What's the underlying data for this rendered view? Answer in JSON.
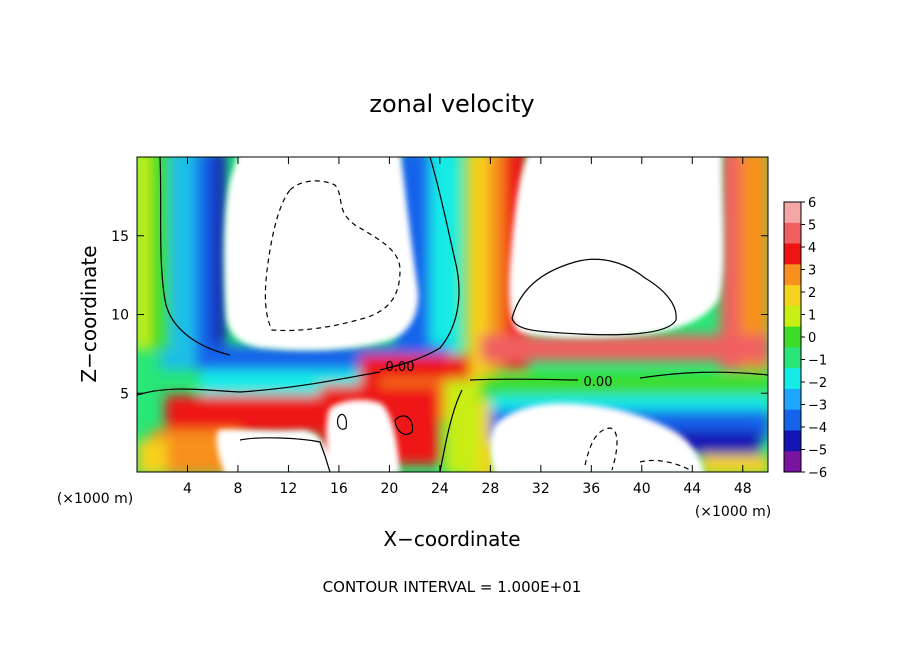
{
  "chart_data": {
    "type": "heatmap",
    "title": "zonal velocity",
    "xlabel": "X−coordinate",
    "ylabel": "Z−coordinate",
    "x_units_left": "(×1000 m)",
    "x_units_right": "(×1000 m)",
    "xlim": [
      0,
      50
    ],
    "ylim": [
      0,
      20
    ],
    "x_ticks": [
      4,
      8,
      12,
      16,
      20,
      24,
      28,
      32,
      36,
      40,
      44,
      48
    ],
    "x_tick_labels": [
      "4",
      "8",
      "12",
      "16",
      "20",
      "24",
      "28",
      "32",
      "36",
      "40",
      "44",
      "48"
    ],
    "y_ticks": [
      5,
      10,
      15
    ],
    "y_tick_labels": [
      "5",
      "10",
      "15"
    ],
    "colorbar": {
      "min": -6,
      "max": 6,
      "levels": [
        6,
        5,
        4,
        3,
        2,
        1,
        0,
        -1,
        -2,
        -3,
        -4,
        -5,
        -6
      ],
      "labels": [
        "6",
        "5",
        "4",
        "3",
        "2",
        "1",
        "0",
        "−1",
        "−2",
        "−3",
        "−4",
        "−5",
        "−6"
      ],
      "colors": [
        "#f4a6a6",
        "#f06060",
        "#ee1414",
        "#f7901e",
        "#f5d21c",
        "#c8ee14",
        "#3cdc28",
        "#28e678",
        "#14ebe6",
        "#1ea5ff",
        "#1464eb",
        "#1414b4",
        "#7814a0"
      ],
      "above_range_color": "#ffffff"
    },
    "contour_labels": [
      "0.00",
      "0.00"
    ],
    "contour_interval_note": "CONTOUR INTERVAL = 1.000E+01",
    "regions": [
      {
        "kind": "white_region",
        "label": "upper-left eddy (|u| > 6)",
        "x_range": [
          6.3,
          23.5
        ],
        "z_range": [
          7,
          20
        ]
      },
      {
        "kind": "white_region",
        "label": "upper-right region (|u| > 6)",
        "x_range": [
          28.3,
          46.3
        ],
        "z_range": [
          7.5,
          20
        ]
      },
      {
        "kind": "white_region",
        "label": "lower-left pocket",
        "x_range": [
          7,
          15.5
        ],
        "z_range": [
          0,
          2.5
        ]
      },
      {
        "kind": "white_region",
        "label": "lower-middle pocket",
        "x_range": [
          15,
          22.5
        ],
        "z_range": [
          0,
          5
        ]
      },
      {
        "kind": "white_region",
        "label": "lower-right pocket",
        "x_range": [
          28,
          43.5
        ],
        "z_range": [
          0,
          4.5
        ]
      },
      {
        "kind": "positive_band",
        "label": "vertical jet",
        "x_range": [
          22.5,
          30.5
        ],
        "z_range": [
          0,
          20
        ]
      },
      {
        "kind": "positive_band",
        "label": "right edge jet",
        "x_range": [
          46,
          50
        ],
        "z_range": [
          7,
          20
        ]
      }
    ]
  }
}
